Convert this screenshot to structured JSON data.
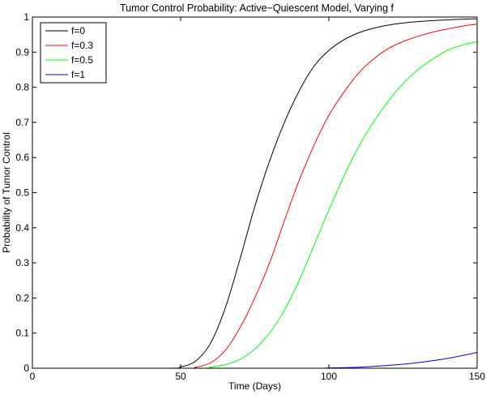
{
  "chart_data": {
    "type": "line",
    "title": "Tumor Control Probability: Active−Quiescent Model, Varying f",
    "xlabel": "Time (Days)",
    "ylabel": "Probability of Tumor Control",
    "xlim": [
      0,
      150
    ],
    "ylim": [
      0,
      1
    ],
    "xticks": [
      0,
      50,
      100,
      150
    ],
    "yticks": [
      0,
      0.1,
      0.2,
      0.3,
      0.4,
      0.5,
      0.6,
      0.7,
      0.8,
      0.9,
      1
    ],
    "xtick_labels": [
      "0",
      "50",
      "100",
      "150"
    ],
    "ytick_labels": [
      "0",
      "0.1",
      "0.2",
      "0.3",
      "0.4",
      "0.5",
      "0.6",
      "0.7",
      "0.8",
      "0.9",
      "1"
    ],
    "grid": false,
    "legend_position": "top-left",
    "series": [
      {
        "name": "f=0",
        "color": "#000000",
        "x": [
          0,
          45,
          50,
          55,
          60,
          65,
          70,
          75,
          80,
          85,
          90,
          95,
          100,
          105,
          110,
          115,
          120,
          125,
          130,
          135,
          140,
          145,
          150
        ],
        "y": [
          0,
          0,
          0.004,
          0.02,
          0.07,
          0.17,
          0.31,
          0.46,
          0.59,
          0.7,
          0.79,
          0.86,
          0.905,
          0.935,
          0.955,
          0.968,
          0.977,
          0.983,
          0.987,
          0.99,
          0.992,
          0.994,
          0.995
        ]
      },
      {
        "name": "f=0.3",
        "color": "#ff0000",
        "x": [
          0,
          50,
          55,
          60,
          65,
          70,
          75,
          80,
          85,
          90,
          95,
          100,
          105,
          110,
          115,
          120,
          125,
          130,
          135,
          140,
          145,
          150
        ],
        "y": [
          0,
          0,
          0.003,
          0.015,
          0.05,
          0.115,
          0.2,
          0.3,
          0.42,
          0.535,
          0.635,
          0.72,
          0.785,
          0.84,
          0.88,
          0.91,
          0.93,
          0.945,
          0.957,
          0.966,
          0.974,
          0.98
        ]
      },
      {
        "name": "f=0.5",
        "color": "#00ff00",
        "x": [
          0,
          55,
          60,
          65,
          70,
          75,
          80,
          85,
          90,
          95,
          100,
          105,
          110,
          115,
          120,
          125,
          130,
          135,
          140,
          145,
          150
        ],
        "y": [
          0,
          0,
          0.003,
          0.01,
          0.025,
          0.055,
          0.1,
          0.165,
          0.25,
          0.35,
          0.45,
          0.545,
          0.63,
          0.7,
          0.76,
          0.81,
          0.85,
          0.88,
          0.905,
          0.92,
          0.93
        ]
      },
      {
        "name": "f=1",
        "color": "#0000ff",
        "x": [
          0,
          90,
          100,
          110,
          120,
          130,
          140,
          150
        ],
        "y": [
          0,
          0,
          0.001,
          0.003,
          0.008,
          0.016,
          0.028,
          0.045
        ]
      }
    ]
  }
}
